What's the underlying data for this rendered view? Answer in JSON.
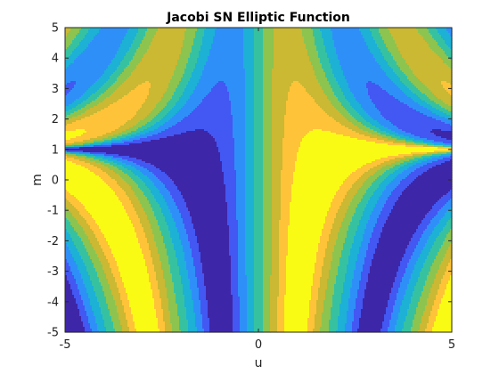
{
  "chart_data": {
    "type": "heatmap",
    "subtype": "filled-contour",
    "title": "Jacobi SN Elliptic Function",
    "xlabel": "u",
    "ylabel": "m",
    "xlim": [
      -5,
      5
    ],
    "ylim": [
      -5,
      5
    ],
    "x_ticks": [
      "-5",
      "0",
      "5"
    ],
    "y_ticks": [
      "5",
      "4",
      "3",
      "2",
      "1",
      "0",
      "-1",
      "-2",
      "-3",
      "-4",
      "-5"
    ],
    "function": "sn(u | m)",
    "value_range": [
      -1,
      1
    ],
    "levels": 9,
    "colormap": [
      "#3e26a8",
      "#4357f2",
      "#2f8ff8",
      "#1cb1d5",
      "#36c2a1",
      "#8cc44f",
      "#cbb833",
      "#fec338",
      "#f9fb15"
    ],
    "grid": false
  }
}
